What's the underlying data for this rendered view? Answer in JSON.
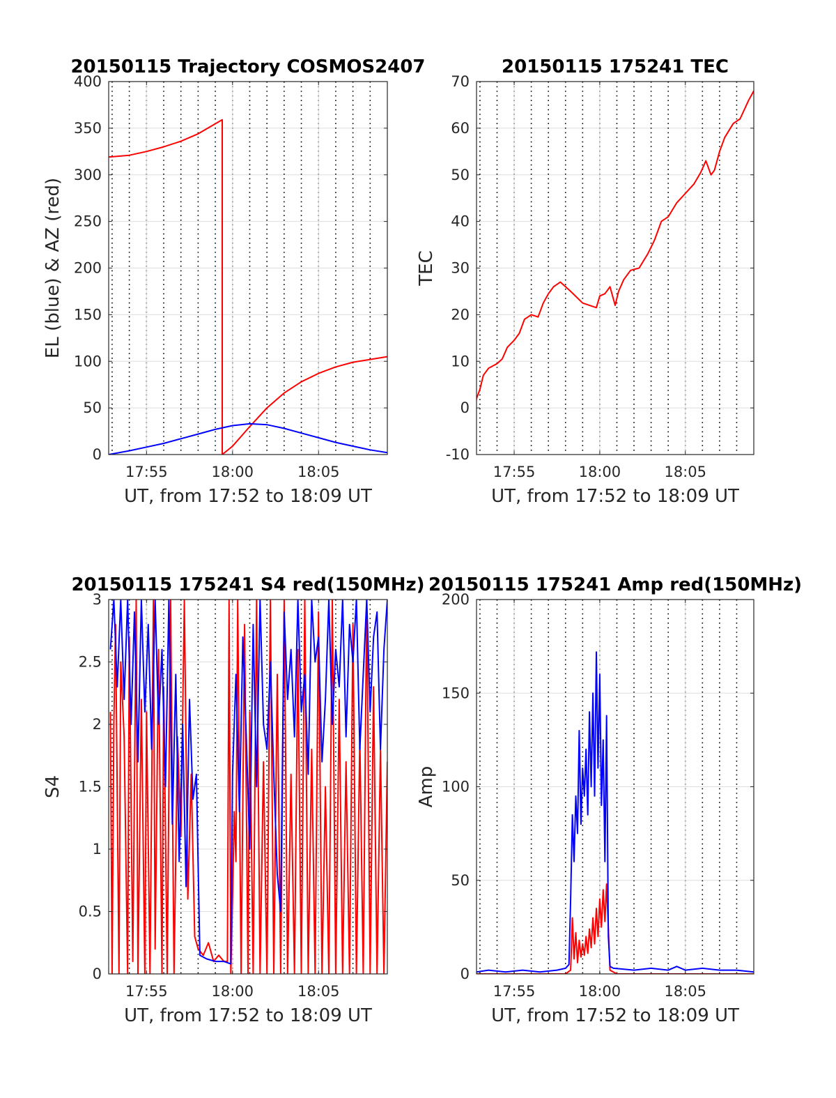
{
  "chart_data": [
    {
      "type": "line",
      "title": "20150115 Trajectory COSMOS2407",
      "xlabel": "UT, from 17:52 to 18:09 UT",
      "ylabel": "EL (blue) & AZ (red)",
      "x_unit": "minutes after 17:52 UT",
      "xlim": [
        0.8,
        17.0
      ],
      "ylim": [
        0,
        400
      ],
      "xticks": [
        3,
        8,
        13
      ],
      "xtick_labels": [
        "17:55",
        "18:00",
        "18:05"
      ],
      "yticks": [
        0,
        50,
        100,
        150,
        200,
        250,
        300,
        350,
        400
      ],
      "ytick_labels": [
        "0",
        "50",
        "100",
        "150",
        "200",
        "250",
        "300",
        "350",
        "400"
      ],
      "minor_grid_x": [
        1,
        2,
        3,
        4,
        5,
        6,
        7,
        8,
        9,
        10,
        11,
        12,
        13,
        14,
        15,
        16
      ],
      "grid": true,
      "series": [
        {
          "color": "#ff0000",
          "x": [
            0.8,
            2,
            3,
            4,
            5,
            6,
            7.4,
            7.4,
            8,
            9,
            10,
            11,
            12,
            13,
            14,
            15,
            16,
            17
          ],
          "y": [
            319,
            321,
            325,
            330,
            336,
            344,
            359,
            0,
            9,
            30,
            50,
            66,
            78,
            87,
            94,
            99,
            102,
            105
          ]
        },
        {
          "color": "#0000ff",
          "x": [
            0.8,
            2,
            3,
            4,
            5,
            6,
            7,
            8,
            9,
            10,
            11,
            12,
            13,
            14,
            15,
            16,
            17
          ],
          "y": [
            0,
            4,
            8,
            12,
            17,
            22,
            27,
            31,
            33,
            32,
            28,
            23,
            18,
            13,
            9,
            5,
            2
          ]
        }
      ]
    },
    {
      "type": "line",
      "title": "20150115 175241 TEC",
      "xlabel": "UT, from 17:52 to 18:09 UT",
      "ylabel": "TEC",
      "x_unit": "minutes after 17:52 UT",
      "xlim": [
        0.8,
        17.0
      ],
      "ylim": [
        -10,
        70
      ],
      "xticks": [
        3,
        8,
        13
      ],
      "xtick_labels": [
        "17:55",
        "18:00",
        "18:05"
      ],
      "yticks": [
        -10,
        0,
        10,
        20,
        30,
        40,
        50,
        60,
        70
      ],
      "ytick_labels": [
        "-10",
        "0",
        "10",
        "20",
        "30",
        "40",
        "50",
        "60",
        "70"
      ],
      "minor_grid_x": [
        1,
        2,
        3,
        4,
        5,
        6,
        7,
        8,
        9,
        10,
        11,
        12,
        13,
        14,
        15,
        16
      ],
      "grid": true,
      "series": [
        {
          "color": "#ff0000",
          "x": [
            0.7,
            0.8,
            1.0,
            1.2,
            1.5,
            2.0,
            2.3,
            2.6,
            3.0,
            3.3,
            3.6,
            4.0,
            4.4,
            4.7,
            5.0,
            5.3,
            5.7,
            6.3,
            7.0,
            7.8,
            8.0,
            8.3,
            8.6,
            8.9,
            9.1,
            9.4,
            9.8,
            10.3,
            10.8,
            11.2,
            11.6,
            12.0,
            12.5,
            13.0,
            13.5,
            13.9,
            14.2,
            14.5,
            14.7,
            15.0,
            15.3,
            15.8,
            16.2,
            16.7,
            17.0
          ],
          "y": [
            0,
            2,
            4,
            7,
            8.5,
            9.5,
            10.5,
            13,
            14.5,
            16,
            19,
            20,
            19.5,
            22.5,
            24.5,
            26,
            27,
            25,
            22.5,
            21.5,
            24,
            24.5,
            26,
            22,
            25,
            27.5,
            29.5,
            30,
            33,
            36,
            40,
            41,
            44,
            46,
            48,
            50.5,
            53,
            50,
            51,
            55,
            58,
            61,
            62,
            66,
            68
          ]
        }
      ]
    },
    {
      "type": "line",
      "title": "20150115 175241 S4 red(150MHz)",
      "xlabel": "UT, from 17:52 to 18:09 UT",
      "ylabel": "S4",
      "x_unit": "minutes after 17:52 UT",
      "xlim": [
        0.8,
        17.0
      ],
      "ylim": [
        0,
        3
      ],
      "xticks": [
        3,
        8,
        13
      ],
      "xtick_labels": [
        "17:55",
        "18:00",
        "18:05"
      ],
      "yticks": [
        0,
        0.5,
        1,
        1.5,
        2,
        2.5,
        3
      ],
      "ytick_labels": [
        "0",
        "0.5",
        "1",
        "1.5",
        "2",
        "2.5",
        "3"
      ],
      "minor_grid_x": [
        1,
        2,
        3,
        4,
        5,
        6,
        7,
        8,
        9,
        10,
        11,
        12,
        13,
        14,
        15,
        16
      ],
      "grid": true,
      "series": [
        {
          "color": "#ff0000",
          "x": [
            0.9,
            1.0,
            1.1,
            1.2,
            1.4,
            1.5,
            1.7,
            1.9,
            2.0,
            2.2,
            2.4,
            2.5,
            2.7,
            2.9,
            3.0,
            3.2,
            3.4,
            3.5,
            3.7,
            3.9,
            4.0,
            4.2,
            4.4,
            4.6,
            4.8,
            5.0,
            5.2,
            5.4,
            5.6,
            5.8,
            6.0,
            6.3,
            6.6,
            6.9,
            7.2,
            7.5,
            7.7,
            7.8,
            7.9,
            8.0,
            8.1,
            8.2,
            8.3,
            8.5,
            8.7,
            8.9,
            9.0,
            9.2,
            9.4,
            9.6,
            9.8,
            10.0,
            10.2,
            10.4,
            10.6,
            10.8,
            11.0,
            11.2,
            11.4,
            11.6,
            11.8,
            12.0,
            12.2,
            12.4,
            12.6,
            12.8,
            13.0,
            13.2,
            13.4,
            13.6,
            13.8,
            14.0,
            14.2,
            14.4,
            14.6,
            14.8,
            15.0,
            15.2,
            15.4,
            15.6,
            15.8,
            16.0,
            16.2,
            16.4,
            16.6,
            16.8,
            17.0
          ],
          "y": [
            2.1,
            0,
            2.0,
            2.8,
            0,
            2.5,
            1.9,
            0,
            2.7,
            0.1,
            3.0,
            0,
            2.2,
            0,
            2.1,
            0,
            3.0,
            0.2,
            2.6,
            0,
            2.3,
            0,
            3.0,
            0,
            1.9,
            1.1,
            3.0,
            0.6,
            1.6,
            0.3,
            0.2,
            0.15,
            0.25,
            0.1,
            0.15,
            0.1,
            0.1,
            3.0,
            0,
            0.6,
            1.3,
            0.9,
            3.0,
            0,
            2.8,
            0,
            2.1,
            0,
            3.0,
            0,
            1.7,
            0,
            3.0,
            0,
            2.4,
            0,
            3.0,
            0,
            1.6,
            0,
            2.6,
            0,
            3.0,
            0,
            1.8,
            0,
            2.9,
            0,
            1.5,
            0,
            3.0,
            0,
            2.2,
            0,
            1.7,
            0,
            2.8,
            0,
            1.9,
            0,
            3.0,
            0,
            2.3,
            0,
            1.8,
            0,
            1.7
          ]
        },
        {
          "color": "#0000ff",
          "x": [
            0.9,
            1.1,
            1.3,
            1.5,
            1.7,
            1.9,
            2.1,
            2.3,
            2.5,
            2.7,
            2.9,
            3.1,
            3.3,
            3.5,
            3.7,
            3.9,
            4.1,
            4.3,
            4.5,
            4.7,
            4.9,
            5.1,
            5.3,
            5.5,
            5.7,
            5.9,
            6.1,
            6.5,
            7.0,
            7.5,
            7.9,
            8.0,
            8.2,
            8.4,
            8.6,
            8.8,
            9.0,
            9.2,
            9.4,
            9.6,
            9.8,
            10.0,
            10.2,
            10.4,
            10.6,
            10.8,
            11.0,
            11.2,
            11.4,
            11.6,
            11.8,
            12.0,
            12.2,
            12.4,
            12.6,
            12.8,
            13.0,
            13.2,
            13.4,
            13.6,
            13.8,
            14.0,
            14.2,
            14.4,
            14.6,
            14.8,
            15.0,
            15.2,
            15.4,
            15.6,
            15.8,
            16.0,
            16.2,
            16.4,
            16.6,
            16.8,
            17.0
          ],
          "y": [
            2.6,
            3.0,
            2.3,
            3.0,
            2.2,
            3.0,
            2.0,
            2.9,
            1.7,
            3.0,
            2.1,
            2.8,
            1.8,
            3.0,
            2.0,
            2.6,
            1.5,
            3.0,
            1.2,
            2.4,
            0.9,
            2.0,
            0.7,
            2.2,
            1.4,
            1.6,
            0.15,
            0.12,
            0.1,
            0.1,
            0.08,
            1.6,
            2.4,
            1.3,
            2.7,
            1.9,
            1.0,
            2.8,
            1.5,
            3.0,
            2.0,
            1.8,
            2.5,
            1.6,
            0.8,
            0.5,
            2.9,
            2.2,
            2.6,
            1.9,
            3.0,
            2.1,
            2.4,
            1.6,
            3.0,
            2.5,
            2.7,
            1.7,
            2.2,
            3.0,
            2.0,
            2.6,
            2.3,
            3.0,
            1.9,
            2.8,
            2.5,
            3.0,
            1.8,
            2.4,
            3.0,
            2.1,
            2.7,
            2.9,
            1.8,
            2.6,
            3.0
          ]
        }
      ]
    },
    {
      "type": "line",
      "title": "20150115 175241 Amp red(150MHz)",
      "xlabel": "UT, from 17:52 to 18:09 UT",
      "ylabel": "Amp",
      "x_unit": "minutes after 17:52 UT",
      "xlim": [
        0.8,
        17.0
      ],
      "ylim": [
        0,
        200
      ],
      "xticks": [
        3,
        8,
        13
      ],
      "xtick_labels": [
        "17:55",
        "18:00",
        "18:05"
      ],
      "yticks": [
        0,
        50,
        100,
        150,
        200
      ],
      "ytick_labels": [
        "0",
        "50",
        "100",
        "150",
        "200"
      ],
      "minor_grid_x": [
        1,
        2,
        3,
        4,
        5,
        6,
        7,
        8,
        9,
        10,
        11,
        12,
        13,
        14,
        15,
        16
      ],
      "grid": true,
      "series": [
        {
          "color": "#ff0000",
          "x": [
            0.8,
            5.0,
            6.0,
            6.3,
            6.4,
            6.5,
            6.6,
            6.7,
            6.8,
            6.9,
            7.0,
            7.1,
            7.2,
            7.3,
            7.4,
            7.5,
            7.6,
            7.7,
            7.8,
            7.9,
            8.0,
            8.1,
            8.2,
            8.3,
            8.4,
            8.6,
            9.0,
            17.0
          ],
          "y": [
            0,
            0,
            0,
            2,
            30,
            8,
            22,
            6,
            18,
            9,
            16,
            10,
            20,
            11,
            24,
            14,
            30,
            16,
            35,
            20,
            40,
            25,
            45,
            28,
            48,
            2,
            0,
            0
          ]
        },
        {
          "color": "#0000ff",
          "x": [
            0.8,
            1.5,
            2.5,
            3.5,
            4.5,
            5.5,
            6.0,
            6.2,
            6.3,
            6.4,
            6.5,
            6.6,
            6.7,
            6.8,
            6.9,
            7.0,
            7.1,
            7.2,
            7.3,
            7.4,
            7.5,
            7.6,
            7.7,
            7.8,
            7.9,
            8.0,
            8.1,
            8.2,
            8.3,
            8.4,
            8.5,
            8.6,
            8.8,
            10.0,
            11.0,
            12.0,
            12.5,
            13.0,
            14.0,
            15.0,
            16.0,
            17.0
          ],
          "y": [
            1,
            2,
            1,
            2,
            1,
            2,
            3,
            5,
            40,
            85,
            60,
            95,
            75,
            130,
            80,
            110,
            95,
            120,
            85,
            140,
            100,
            150,
            95,
            172,
            110,
            160,
            90,
            125,
            60,
            138,
            20,
            4,
            3,
            2,
            3,
            2,
            4,
            2,
            3,
            2,
            2,
            1
          ]
        }
      ]
    }
  ]
}
